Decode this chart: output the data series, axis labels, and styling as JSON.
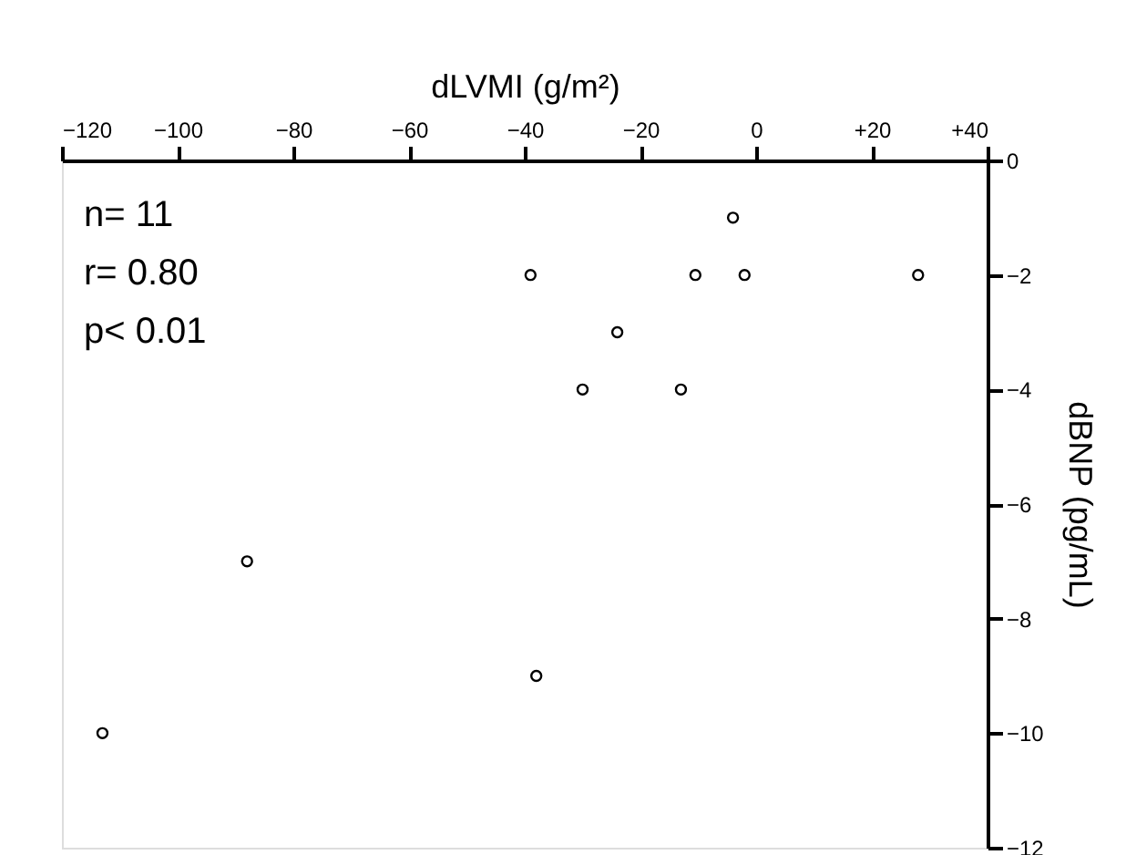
{
  "chart_data": {
    "type": "scatter",
    "xlabel": "dLVMI (g/m²)",
    "ylabel": "dBNP (pg/mL)",
    "x": [
      -4,
      -39,
      -10.5,
      -2,
      28,
      -24,
      -30,
      -13,
      -88,
      -38,
      -113
    ],
    "values": [
      -1,
      -2,
      -2,
      -2,
      -2,
      -3,
      -4,
      -4,
      -7,
      -9,
      -10
    ],
    "color": "#000000",
    "marker": "circle",
    "grid": false,
    "xlim": [
      -120,
      40
    ],
    "xticks": [
      -120,
      -100,
      -80,
      -60,
      -40,
      -20,
      0,
      {
        "value": 20,
        "label": "+20"
      },
      {
        "value": 40,
        "label": "+40"
      }
    ],
    "ylim": [
      -12,
      0
    ],
    "yticks": [
      -12,
      -10,
      -8,
      -6,
      -4,
      -2,
      0
    ],
    "annotations": [
      "n=  11",
      "r=  0.80",
      "p<  0.01"
    ]
  }
}
